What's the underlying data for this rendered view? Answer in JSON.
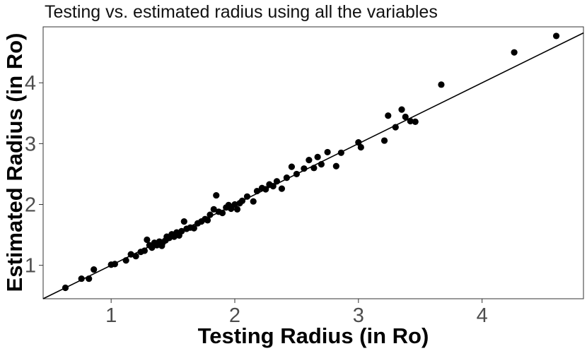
{
  "chart_data": {
    "type": "scatter",
    "title": "Testing vs. estimated radius using all the variables",
    "xlabel": "Testing Radius (in Ro)",
    "ylabel": "Estimated Radius (in Ro)",
    "xlim": [
      0.45,
      4.82
    ],
    "ylim": [
      0.45,
      4.92
    ],
    "x_ticks": [
      1,
      2,
      3,
      4
    ],
    "y_ticks": [
      1,
      2,
      3,
      4
    ],
    "x_tick_labels": [
      "1",
      "2",
      "3",
      "4"
    ],
    "y_tick_labels": [
      "1",
      "2",
      "3",
      "4"
    ],
    "grid": false,
    "legend": "none",
    "reference_line": {
      "type": "identity",
      "slope": 1,
      "intercept": 0
    },
    "points": [
      [
        0.63,
        0.63
      ],
      [
        0.76,
        0.78
      ],
      [
        0.82,
        0.78
      ],
      [
        0.86,
        0.93
      ],
      [
        1.0,
        1.01
      ],
      [
        1.03,
        1.02
      ],
      [
        1.12,
        1.08
      ],
      [
        1.16,
        1.18
      ],
      [
        1.2,
        1.15
      ],
      [
        1.24,
        1.22
      ],
      [
        1.27,
        1.24
      ],
      [
        1.29,
        1.42
      ],
      [
        1.31,
        1.33
      ],
      [
        1.33,
        1.29
      ],
      [
        1.35,
        1.37
      ],
      [
        1.37,
        1.33
      ],
      [
        1.39,
        1.39
      ],
      [
        1.41,
        1.32
      ],
      [
        1.42,
        1.38
      ],
      [
        1.44,
        1.41
      ],
      [
        1.45,
        1.47
      ],
      [
        1.47,
        1.45
      ],
      [
        1.49,
        1.51
      ],
      [
        1.51,
        1.47
      ],
      [
        1.53,
        1.54
      ],
      [
        1.55,
        1.49
      ],
      [
        1.57,
        1.56
      ],
      [
        1.59,
        1.72
      ],
      [
        1.61,
        1.6
      ],
      [
        1.64,
        1.62
      ],
      [
        1.67,
        1.61
      ],
      [
        1.7,
        1.69
      ],
      [
        1.73,
        1.72
      ],
      [
        1.76,
        1.76
      ],
      [
        1.78,
        1.74
      ],
      [
        1.8,
        1.83
      ],
      [
        1.83,
        1.92
      ],
      [
        1.85,
        2.15
      ],
      [
        1.87,
        1.88
      ],
      [
        1.9,
        1.86
      ],
      [
        1.93,
        1.95
      ],
      [
        1.95,
        1.99
      ],
      [
        1.97,
        1.93
      ],
      [
        2.0,
        2.0
      ],
      [
        2.02,
        1.92
      ],
      [
        2.04,
        2.02
      ],
      [
        2.06,
        2.06
      ],
      [
        2.1,
        2.13
      ],
      [
        2.15,
        2.05
      ],
      [
        2.18,
        2.22
      ],
      [
        2.22,
        2.27
      ],
      [
        2.25,
        2.25
      ],
      [
        2.28,
        2.33
      ],
      [
        2.31,
        2.3
      ],
      [
        2.34,
        2.38
      ],
      [
        2.38,
        2.26
      ],
      [
        2.42,
        2.44
      ],
      [
        2.46,
        2.62
      ],
      [
        2.5,
        2.5
      ],
      [
        2.56,
        2.59
      ],
      [
        2.6,
        2.73
      ],
      [
        2.64,
        2.6
      ],
      [
        2.67,
        2.78
      ],
      [
        2.7,
        2.66
      ],
      [
        2.75,
        2.86
      ],
      [
        2.82,
        2.63
      ],
      [
        2.86,
        2.85
      ],
      [
        3.0,
        3.02
      ],
      [
        3.02,
        2.94
      ],
      [
        3.21,
        3.05
      ],
      [
        3.24,
        3.46
      ],
      [
        3.3,
        3.27
      ],
      [
        3.35,
        3.56
      ],
      [
        3.38,
        3.44
      ],
      [
        3.42,
        3.37
      ],
      [
        3.46,
        3.36
      ],
      [
        3.67,
        3.97
      ],
      [
        4.26,
        4.5
      ],
      [
        4.6,
        4.77
      ]
    ]
  }
}
